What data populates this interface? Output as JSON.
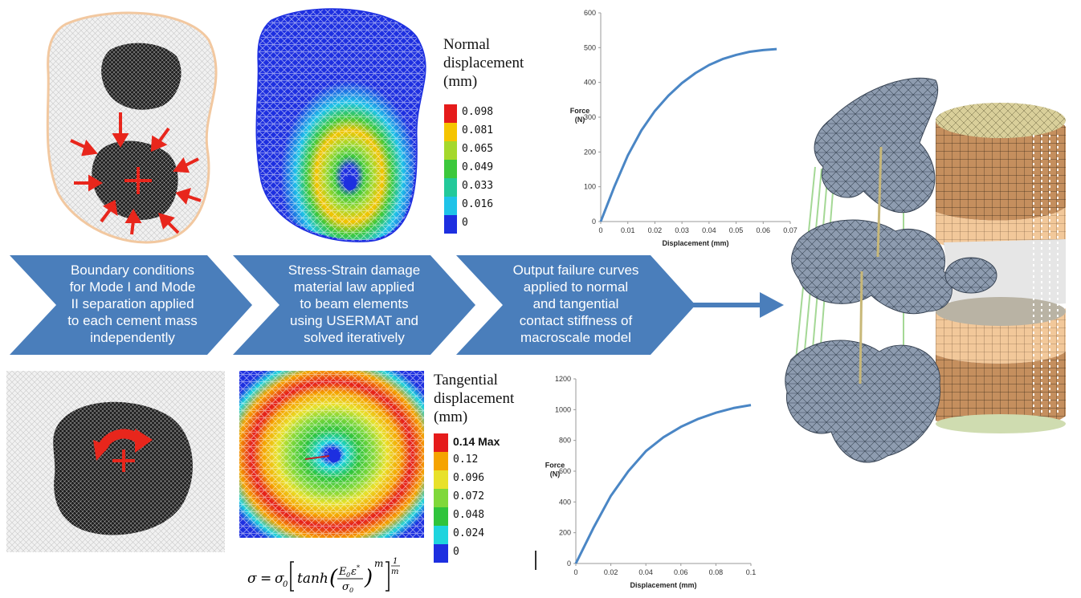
{
  "process_steps": [
    {
      "text": "Boundary conditions for Mode I and Mode II separation applied to each cement mass independently",
      "lines": [
        "Boundary conditions",
        "for Mode I and Mode",
        "II separation applied",
        "to each cement mass",
        "independently"
      ]
    },
    {
      "text": "Stress-Strain damage material law applied to beam elements using USERMAT and solved iteratively",
      "lines": [
        "Stress-Strain damage",
        "material law applied",
        "to beam elements",
        "using USERMAT and",
        "solved iteratively"
      ]
    },
    {
      "text": "Output failure curves applied to normal and tangential contact stiffness of macroscale model",
      "lines": [
        "Output failure curves",
        "applied to normal",
        "and tangential",
        "contact stiffness of",
        "macroscale model"
      ]
    }
  ],
  "colors": {
    "chevron": "#4a7ebb",
    "curve": "#4a86c5",
    "arrow_red": "#e8261c",
    "outline_peach": "#f2c8a0"
  },
  "normal_legend": {
    "title": [
      "Normal",
      "displacement",
      "(mm)"
    ],
    "items": [
      {
        "value": "0.098",
        "color": "#e51b1b"
      },
      {
        "value": "0.081",
        "color": "#f5c400"
      },
      {
        "value": "0.065",
        "color": "#a5d82c"
      },
      {
        "value": "0.049",
        "color": "#3cc83c"
      },
      {
        "value": "0.033",
        "color": "#23c99a"
      },
      {
        "value": "0.016",
        "color": "#1fc3e8"
      },
      {
        "value": "0",
        "color": "#1d2fe0"
      }
    ]
  },
  "tangential_legend": {
    "title": [
      "Tangential",
      "displacement",
      "(mm)"
    ],
    "items": [
      {
        "value": "0.14",
        "suffix": "Max",
        "color": "#e51b1b"
      },
      {
        "value": "0.12",
        "color": "#f5a300"
      },
      {
        "value": "0.096",
        "color": "#e8e12a"
      },
      {
        "value": "0.072",
        "color": "#7fd83a"
      },
      {
        "value": "0.048",
        "color": "#2fc43c"
      },
      {
        "value": "0.024",
        "color": "#1ed4de"
      },
      {
        "value": "0",
        "color": "#1d2fe0"
      }
    ]
  },
  "formula": "σ = σ₀ [tanh(E₀ε*/σ₀)ᵐ]^(1/m)",
  "chart_data": [
    {
      "type": "line",
      "xlabel": "Displacement (mm)",
      "ylabel": "Force (N)",
      "ylabel_lines": [
        "Force",
        "(N)"
      ],
      "xlim": [
        0,
        0.07
      ],
      "ylim": [
        0,
        600
      ],
      "x_ticks": [
        "0",
        "0.01",
        "0.02",
        "0.03",
        "0.04",
        "0.05",
        "0.06",
        "0.07"
      ],
      "y_ticks": [
        "0",
        "100",
        "200",
        "300",
        "400",
        "500",
        "600"
      ],
      "series": [
        {
          "x": [
            0,
            0.005,
            0.01,
            0.015,
            0.02,
            0.025,
            0.03,
            0.035,
            0.04,
            0.045,
            0.05,
            0.055,
            0.06,
            0.065
          ],
          "y": [
            0,
            100,
            190,
            262,
            318,
            362,
            398,
            427,
            450,
            467,
            479,
            488,
            493,
            496
          ]
        }
      ]
    },
    {
      "type": "line",
      "xlabel": "Displacement (mm)",
      "ylabel": "Force (N)",
      "ylabel_lines": [
        "Force",
        "(N)"
      ],
      "xlim": [
        0,
        0.1
      ],
      "ylim": [
        0,
        1200
      ],
      "x_ticks": [
        "0",
        "0.02",
        "0.04",
        "0.06",
        "0.08",
        "0.1"
      ],
      "y_ticks": [
        "0",
        "200",
        "400",
        "600",
        "800",
        "1000",
        "1200"
      ],
      "series": [
        {
          "x": [
            0,
            0.01,
            0.02,
            0.03,
            0.04,
            0.05,
            0.06,
            0.07,
            0.08,
            0.09,
            0.1
          ],
          "y": [
            0,
            230,
            440,
            600,
            730,
            820,
            888,
            940,
            980,
            1010,
            1030
          ]
        }
      ]
    }
  ]
}
